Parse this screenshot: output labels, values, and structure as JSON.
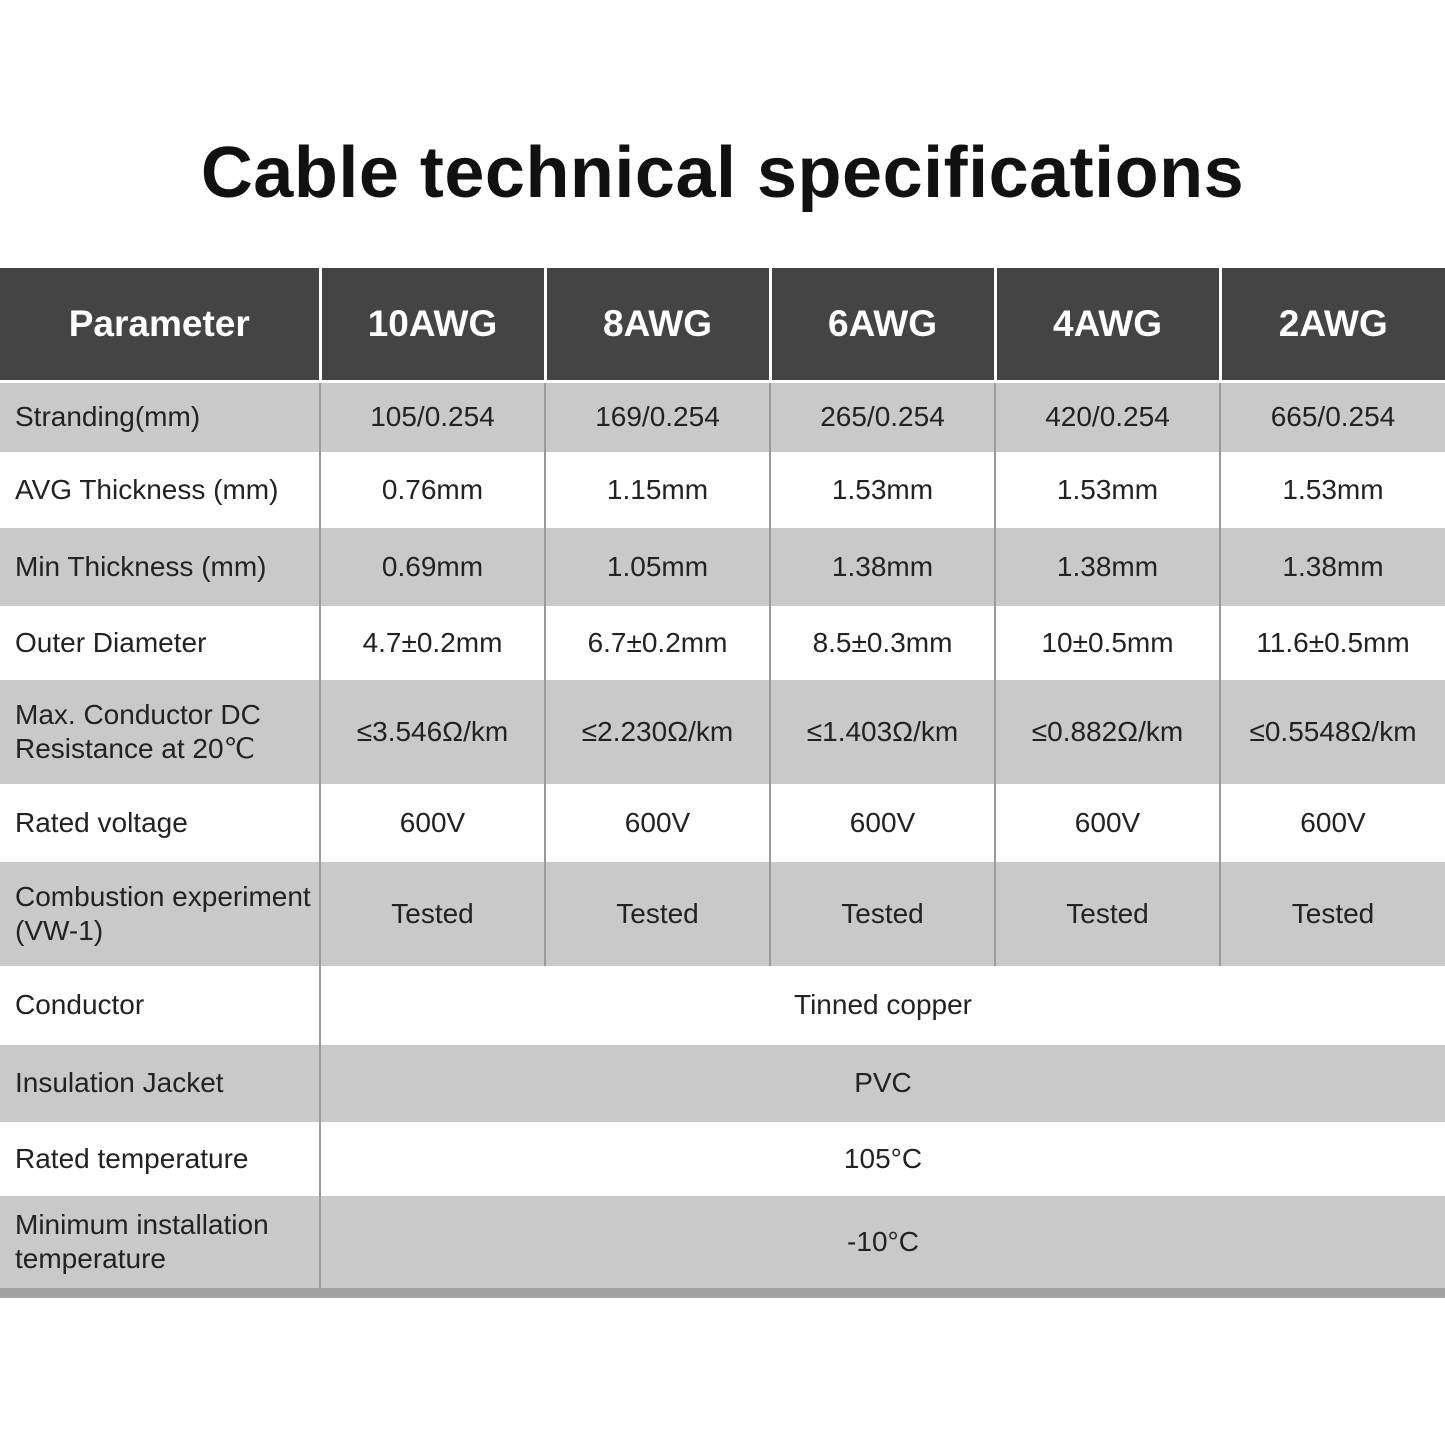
{
  "title": "Cable technical specifications",
  "headers": [
    "Parameter",
    "10AWG",
    "8AWG",
    "6AWG",
    "4AWG",
    "2AWG"
  ],
  "rows": [
    {
      "param": "Stranding(mm)",
      "values": [
        "105/0.254",
        "169/0.254",
        "265/0.254",
        "420/0.254",
        "665/0.254"
      ]
    },
    {
      "param": "AVG Thickness (mm)",
      "values": [
        "0.76mm",
        "1.15mm",
        "1.53mm",
        "1.53mm",
        "1.53mm"
      ]
    },
    {
      "param": "Min Thickness (mm)",
      "values": [
        "0.69mm",
        "1.05mm",
        "1.38mm",
        "1.38mm",
        "1.38mm"
      ]
    },
    {
      "param": "Outer Diameter",
      "values": [
        "4.7±0.2mm",
        "6.7±0.2mm",
        "8.5±0.3mm",
        "10±0.5mm",
        "11.6±0.5mm"
      ]
    },
    {
      "param": "Max. Conductor DC Resistance at 20℃",
      "values": [
        "≤3.546Ω/km",
        "≤2.230Ω/km",
        "≤1.403Ω/km",
        "≤0.882Ω/km",
        "≤0.5548Ω/km"
      ]
    },
    {
      "param": "Rated voltage",
      "values": [
        "600V",
        "600V",
        "600V",
        "600V",
        "600V"
      ]
    },
    {
      "param": "Combustion experiment (VW-1)",
      "values": [
        "Tested",
        "Tested",
        "Tested",
        "Tested",
        "Tested"
      ]
    }
  ],
  "merged_rows": [
    {
      "param": "Conductor",
      "value": "Tinned copper"
    },
    {
      "param": "Insulation Jacket",
      "value": "PVC"
    },
    {
      "param": "Rated temperature",
      "value": "105°C"
    },
    {
      "param": "Minimum installation temperature",
      "value": "-10°C"
    }
  ]
}
